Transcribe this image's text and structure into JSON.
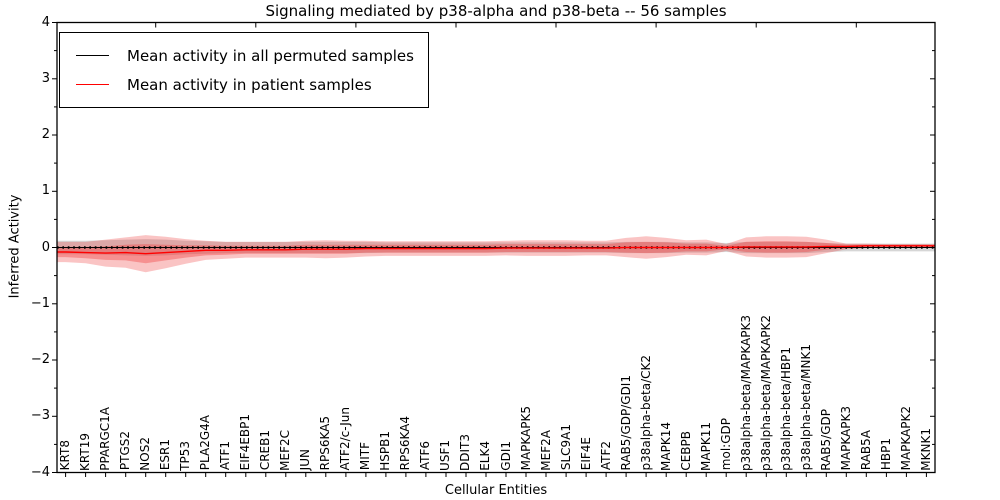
{
  "title": "Signaling mediated by p38-alpha and p38-beta -- 56 samples",
  "legend": {
    "items": [
      {
        "label": "Mean activity in all permuted samples",
        "color": "#000000"
      },
      {
        "label": "Mean activity in patient samples",
        "color": "#ff0000"
      }
    ]
  },
  "axes": {
    "ylabel": "Inferred Activity",
    "xlabel": "Cellular Entities",
    "ytick_labels": [
      "4",
      "3",
      "2",
      "1",
      "0",
      "−1",
      "−2",
      "−3",
      "−4"
    ]
  },
  "chart_data": {
    "type": "line",
    "title": "Signaling mediated by p38-alpha and p38-beta -- 56 samples",
    "xlabel": "Cellular Entities",
    "ylabel": "Inferred Activity",
    "ylim": [
      -4,
      4
    ],
    "yticks": [
      4,
      3,
      2,
      1,
      0,
      -1,
      -2,
      -3,
      -4
    ],
    "grid": false,
    "legend_position": "upper left",
    "categories": [
      "KRT8",
      "KRT19",
      "PPARGC1A",
      "PTGS2",
      "NOS2",
      "ESR1",
      "TP53",
      "PLA2G4A",
      "ATF1",
      "EIF4EBP1",
      "CREB1",
      "MEF2C",
      "JUN",
      "RPS6KA5",
      "ATF2/c-Jun",
      "MITF",
      "HSPB1",
      "RPS6KA4",
      "ATF6",
      "USF1",
      "DDIT3",
      "ELK4",
      "GDI1",
      "MAPKAPK5",
      "MEF2A",
      "SLC9A1",
      "EIF4E",
      "ATF2",
      "RAB5/GDP/GDI1",
      "p38alpha-beta/CK2",
      "MAPK14",
      "CEBPB",
      "MAPK11",
      "mol:GDP",
      "p38alpha-beta/MAPKAPK3",
      "p38alpha-beta/MAPKAPK2",
      "p38alpha-beta/HBP1",
      "p38alpha-beta/MNK1",
      "RAB5/GDP",
      "MAPKAPK3",
      "RAB5A",
      "HBP1",
      "MAPKAPK2",
      "MKNK1"
    ],
    "series": [
      {
        "name": "Mean activity in all permuted samples",
        "color": "#000000",
        "line_style": "solid with dotted marker overlay",
        "values": [
          0,
          0,
          0,
          0,
          0,
          0,
          0,
          0,
          0,
          0,
          0,
          0,
          0,
          0,
          0,
          0,
          0,
          0,
          0,
          0,
          0,
          0,
          0,
          0,
          0,
          0,
          0,
          0,
          0,
          0,
          0,
          0,
          0,
          0,
          0,
          0,
          0,
          0,
          0,
          0,
          0,
          0,
          0,
          0
        ],
        "std": [
          0.12,
          0.12,
          0.13,
          0.14,
          0.15,
          0.14,
          0.12,
          0.11,
          0.1,
          0.1,
          0.1,
          0.1,
          0.1,
          0.1,
          0.1,
          0.1,
          0.09,
          0.09,
          0.09,
          0.09,
          0.09,
          0.09,
          0.09,
          0.09,
          0.09,
          0.09,
          0.09,
          0.09,
          0.1,
          0.1,
          0.1,
          0.09,
          0.09,
          0.08,
          0.1,
          0.1,
          0.1,
          0.1,
          0.08,
          0.07,
          0.07,
          0.07,
          0.07,
          0.07
        ],
        "band_color": "#787878",
        "band_alpha": 0.3
      },
      {
        "name": "Mean activity in patient samples",
        "color": "#ff0000",
        "line_style": "solid",
        "values": [
          -0.08,
          -0.09,
          -0.1,
          -0.09,
          -0.11,
          -0.09,
          -0.07,
          -0.05,
          -0.05,
          -0.04,
          -0.04,
          -0.04,
          -0.03,
          -0.03,
          -0.03,
          -0.02,
          -0.02,
          -0.02,
          -0.02,
          -0.02,
          -0.02,
          -0.02,
          -0.01,
          -0.01,
          -0.01,
          -0.01,
          -0.01,
          -0.01,
          0.0,
          0.0,
          0.0,
          0.0,
          0.0,
          0.0,
          0.01,
          0.01,
          0.01,
          0.01,
          0.02,
          0.02,
          0.03,
          0.03,
          0.03,
          0.03
        ],
        "std": [
          0.18,
          0.19,
          0.24,
          0.27,
          0.33,
          0.28,
          0.22,
          0.17,
          0.15,
          0.14,
          0.14,
          0.14,
          0.15,
          0.16,
          0.15,
          0.14,
          0.13,
          0.13,
          0.13,
          0.13,
          0.13,
          0.13,
          0.13,
          0.14,
          0.14,
          0.14,
          0.13,
          0.13,
          0.17,
          0.2,
          0.17,
          0.13,
          0.14,
          0.06,
          0.17,
          0.19,
          0.19,
          0.18,
          0.12,
          0.05,
          0.04,
          0.03,
          0.03,
          0.03
        ],
        "stderr": [
          0.09,
          0.1,
          0.12,
          0.14,
          0.17,
          0.14,
          0.11,
          0.09,
          0.08,
          0.07,
          0.07,
          0.07,
          0.08,
          0.08,
          0.08,
          0.07,
          0.07,
          0.07,
          0.07,
          0.07,
          0.07,
          0.07,
          0.07,
          0.07,
          0.07,
          0.07,
          0.07,
          0.07,
          0.09,
          0.1,
          0.09,
          0.07,
          0.07,
          0.03,
          0.09,
          0.1,
          0.1,
          0.09,
          0.06,
          0.03,
          0.02,
          0.02,
          0.02,
          0.02
        ],
        "band_color": "#f03c3c",
        "band_alpha": 0.3
      }
    ]
  }
}
